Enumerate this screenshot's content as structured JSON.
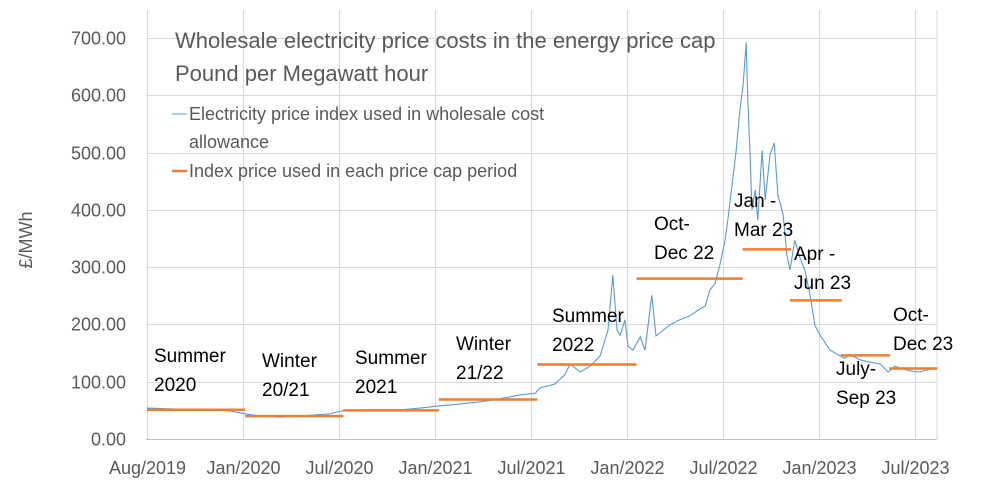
{
  "chart_data": {
    "type": "line",
    "title": "Wholesale electricity price costs in the energy price cap",
    "subtitle": "Pound per Megawatt hour",
    "ylabel": "£/MWh",
    "xlabel": "",
    "ylim": [
      0,
      700
    ],
    "yticks": [
      "0.00",
      "100.00",
      "200.00",
      "300.00",
      "400.00",
      "500.00",
      "600.00",
      "700.00"
    ],
    "xticks": [
      "Aug/2019",
      "Jan/2020",
      "Jul/2020",
      "Jan/2021",
      "Jul/2021",
      "Jan/2022",
      "Jul/2022",
      "Jan/2023",
      "Jul/2023"
    ],
    "xlim": [
      "2019-08-01",
      "2023-09-08"
    ],
    "grid": true,
    "legend_position": "top-left",
    "series": [
      {
        "name": "Electricity price index used in wholesale cost allowance",
        "legend_lines": [
          "Electricity price index used in wholesale cost",
          "allowance"
        ],
        "color": "#5b9bd5",
        "points": [
          [
            "2019-08-01",
            54
          ],
          [
            "2019-10-03",
            52
          ],
          [
            "2019-11-09",
            52
          ],
          [
            "2020-01-05",
            49
          ],
          [
            "2020-02-03",
            44
          ],
          [
            "2020-03-02",
            40
          ],
          [
            "2020-04-09",
            38
          ],
          [
            "2020-05-17",
            40
          ],
          [
            "2020-07-13",
            44
          ],
          [
            "2020-08-05",
            49
          ],
          [
            "2020-09-27",
            51
          ],
          [
            "2020-11-23",
            51
          ],
          [
            "2020-12-31",
            54
          ],
          [
            "2021-02-06",
            58
          ],
          [
            "2021-03-16",
            61
          ],
          [
            "2021-04-23",
            65
          ],
          [
            "2021-05-31",
            70
          ],
          [
            "2021-07-08",
            77
          ],
          [
            "2021-08-06",
            80
          ],
          [
            "2021-08-15",
            89
          ],
          [
            "2021-09-12",
            96
          ],
          [
            "2021-10-01",
            112
          ],
          [
            "2021-10-11",
            131
          ],
          [
            "2021-10-30",
            117
          ],
          [
            "2021-11-18",
            127
          ],
          [
            "2021-12-07",
            145
          ],
          [
            "2021-12-22",
            190
          ],
          [
            "2021-12-31",
            286
          ],
          [
            "2022-01-08",
            190
          ],
          [
            "2022-01-14",
            181
          ],
          [
            "2022-01-23",
            208
          ],
          [
            "2022-01-29",
            162
          ],
          [
            "2022-02-07",
            155
          ],
          [
            "2022-02-21",
            178
          ],
          [
            "2022-03-02",
            155
          ],
          [
            "2022-03-15",
            251
          ],
          [
            "2022-03-23",
            180
          ],
          [
            "2022-03-30",
            185
          ],
          [
            "2022-04-18",
            199
          ],
          [
            "2022-05-07",
            208
          ],
          [
            "2022-05-26",
            215
          ],
          [
            "2022-06-14",
            227
          ],
          [
            "2022-06-24",
            232
          ],
          [
            "2022-07-03",
            260
          ],
          [
            "2022-07-13",
            272
          ],
          [
            "2022-07-22",
            304
          ],
          [
            "2022-08-01",
            347
          ],
          [
            "2022-08-06",
            382
          ],
          [
            "2022-08-14",
            443
          ],
          [
            "2022-08-22",
            504
          ],
          [
            "2022-08-29",
            574
          ],
          [
            "2022-09-04",
            618
          ],
          [
            "2022-09-10",
            692
          ],
          [
            "2022-09-13",
            592
          ],
          [
            "2022-09-17",
            504
          ],
          [
            "2022-09-21",
            400
          ],
          [
            "2022-09-27",
            435
          ],
          [
            "2022-10-02",
            382
          ],
          [
            "2022-10-10",
            504
          ],
          [
            "2022-10-16",
            417
          ],
          [
            "2022-10-25",
            496
          ],
          [
            "2022-11-02",
            517
          ],
          [
            "2022-11-09",
            426
          ],
          [
            "2022-11-19",
            391
          ],
          [
            "2022-11-26",
            321
          ],
          [
            "2022-12-02",
            295
          ],
          [
            "2022-12-11",
            347
          ],
          [
            "2022-12-21",
            316
          ],
          [
            "2022-12-30",
            295
          ],
          [
            "2023-01-09",
            251
          ],
          [
            "2023-01-18",
            199
          ],
          [
            "2023-01-28",
            181
          ],
          [
            "2023-02-06",
            169
          ],
          [
            "2023-02-16",
            155
          ],
          [
            "2023-03-03",
            147
          ],
          [
            "2023-03-16",
            141
          ],
          [
            "2023-03-26",
            147
          ],
          [
            "2023-04-14",
            138
          ],
          [
            "2023-05-03",
            134
          ],
          [
            "2023-05-22",
            131
          ],
          [
            "2023-06-06",
            117
          ],
          [
            "2023-06-19",
            127
          ],
          [
            "2023-06-28",
            124
          ],
          [
            "2023-07-17",
            119
          ],
          [
            "2023-08-05",
            117
          ],
          [
            "2023-08-24",
            122
          ],
          [
            "2023-09-07",
            124
          ]
        ]
      },
      {
        "name": "Index price used in each price cap period",
        "color": "#ed7d31",
        "segments": [
          {
            "label": [
              "Summer",
              "2020"
            ],
            "start": "2019-08-01",
            "end": "2020-02-03",
            "value": 51
          },
          {
            "label": [
              "Winter",
              "20/21"
            ],
            "start": "2020-02-03",
            "end": "2020-08-07",
            "value": 40
          },
          {
            "label": [
              "Summer",
              "2021"
            ],
            "start": "2020-08-07",
            "end": "2021-02-04",
            "value": 50
          },
          {
            "label": [
              "Winter",
              "21/22"
            ],
            "start": "2021-02-04",
            "end": "2021-08-10",
            "value": 69
          },
          {
            "label": [
              "Summer",
              "2022"
            ],
            "start": "2021-08-10",
            "end": "2022-02-14",
            "value": 130
          },
          {
            "label": [
              "Oct-",
              "Dec 22"
            ],
            "start": "2022-02-14",
            "end": "2022-09-03",
            "value": 280
          },
          {
            "label": [
              "Jan -",
              "Mar 23"
            ],
            "start": "2022-09-03",
            "end": "2022-12-04",
            "value": 331
          },
          {
            "label": [
              "Apr -",
              "Jun 23"
            ],
            "start": "2022-12-02",
            "end": "2023-03-10",
            "value": 242
          },
          {
            "label": [
              "July-",
              "Sep 23"
            ],
            "start": "2023-03-08",
            "end": "2023-06-10",
            "value": 146
          },
          {
            "label": [
              "Oct-",
              "Dec 23"
            ],
            "start": "2023-06-08",
            "end": "2023-09-07",
            "value": 123
          }
        ]
      }
    ]
  }
}
